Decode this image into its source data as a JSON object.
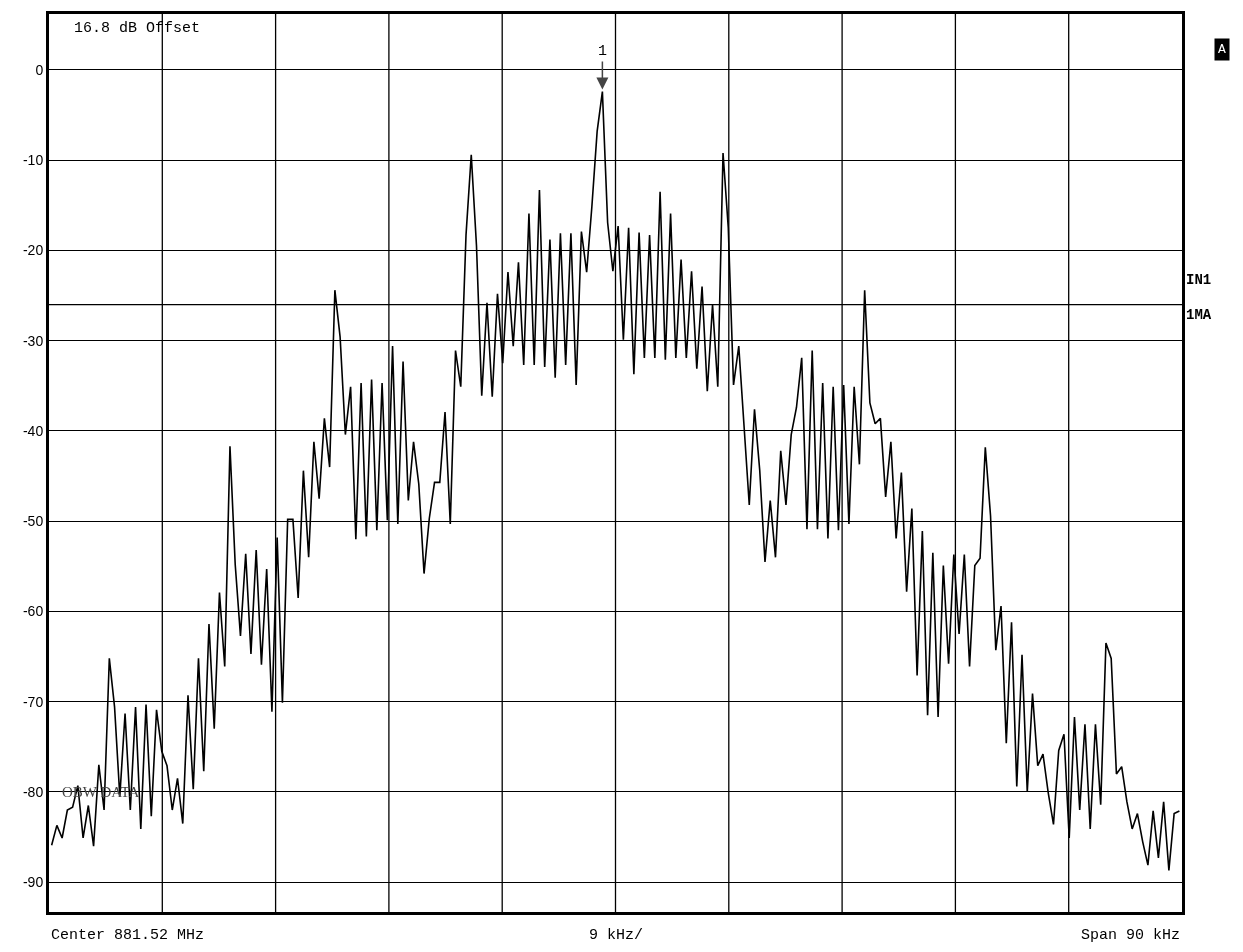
{
  "chart_data": {
    "type": "line",
    "categories": [
      null,
      null,
      null,
      null,
      null,
      null,
      null,
      null,
      null,
      null,
      null,
      null,
      null,
      null,
      null,
      null,
      null,
      null,
      null,
      null,
      null,
      null,
      null,
      null,
      null,
      null,
      null,
      null,
      null,
      null,
      null,
      null,
      null,
      null,
      null,
      null,
      null,
      null,
      null,
      null,
      null,
      null,
      null,
      null,
      null,
      null,
      null,
      null,
      null,
      null,
      null,
      null,
      null,
      null,
      null,
      null,
      null,
      null,
      null,
      null,
      null,
      null,
      null,
      null,
      null,
      null,
      null,
      null,
      null,
      null,
      null,
      null,
      null,
      null,
      null,
      null,
      null,
      null,
      null,
      null,
      null,
      null,
      null,
      null,
      null,
      null,
      null,
      null,
      null,
      null,
      null,
      null,
      null,
      null,
      null,
      null,
      null,
      null,
      null,
      null,
      null,
      null,
      null,
      null,
      null,
      null,
      null,
      null,
      null,
      null,
      null,
      null,
      null,
      null,
      null,
      null,
      null,
      null,
      null,
      null,
      null,
      null,
      null,
      null,
      null,
      null,
      null,
      null,
      null,
      null,
      null,
      null,
      null,
      null,
      null,
      null,
      null,
      null,
      null,
      null,
      null,
      null,
      null,
      null,
      null,
      null,
      null,
      null,
      null,
      null,
      null,
      null,
      null,
      null,
      null,
      null,
      null,
      null,
      null,
      null,
      null,
      null,
      null,
      null,
      null,
      null,
      null,
      null,
      null,
      null,
      null,
      null,
      null,
      null,
      null,
      null,
      null,
      null,
      null,
      null,
      null,
      null,
      null,
      null,
      null,
      null,
      null,
      null,
      null,
      null,
      null,
      null,
      null,
      null,
      null,
      null,
      null,
      null,
      null,
      null,
      null,
      null,
      null,
      null,
      null,
      null,
      null,
      null,
      null,
      null,
      null,
      null,
      null,
      null,
      null,
      null
    ],
    "series": [
      {
        "color": "#000000",
        "values": [
          -85.9,
          -83.7,
          -85.1,
          -82,
          -81.7,
          -79.3,
          -85.1,
          -81.5,
          -86,
          -77,
          -82,
          -65.2,
          -70.6,
          -80.5,
          -71.3,
          -82,
          -70.6,
          -84.1,
          -70.3,
          -82.7,
          -70.9,
          -75.5,
          -77.1,
          -82,
          -78.5,
          -83.5,
          -69.3,
          -79.7,
          -65.2,
          -77.7,
          -61.4,
          -73,
          -57.9,
          -66.1,
          -41.7,
          -54.8,
          -62.7,
          -53.6,
          -64.7,
          -53.2,
          -65.9,
          -55.3,
          -71.1,
          -51.8,
          -70.1,
          -49.8,
          -49.8,
          -58.5,
          -44.4,
          -54,
          -41.2,
          -47.5,
          -38.6,
          -44,
          -24.4,
          -29.6,
          -40.4,
          -35.1,
          -52,
          -34.7,
          -51.7,
          -34.3,
          -51,
          -34.7,
          -49.9,
          -30.6,
          -50.3,
          -32.3,
          -47.7,
          -41.2,
          -45.9,
          -55.8,
          -49.7,
          -45.7,
          -45.7,
          -37.9,
          -50.3,
          -31.1,
          -35.1,
          -18.3,
          -9.4,
          -19.5,
          -36.1,
          -25.8,
          -36.2,
          -24.8,
          -32.5,
          -22.4,
          -30.6,
          -21.3,
          -32.7,
          -15.9,
          -32.7,
          -13.3,
          -32.9,
          -18.8,
          -34.1,
          -18.1,
          -32.7,
          -18.1,
          -34.9,
          -17.9,
          -22.4,
          -15.1,
          -6.8,
          -2.4,
          -16.9,
          -22.3,
          -17.3,
          -29.9,
          -17.5,
          -33.7,
          -18,
          -31.9,
          -18.3,
          -31.9,
          -13.5,
          -32.1,
          -15.9,
          -31.9,
          -21,
          -31.9,
          -22.3,
          -33.1,
          -24,
          -35.6,
          -26,
          -35.1,
          -9.2,
          -17.5,
          -34.9,
          -30.6,
          -39.4,
          -48.2,
          -37.6,
          -44.4,
          -54.5,
          -47.7,
          -54,
          -42.2,
          -48.2,
          -40.4,
          -37.4,
          -31.9,
          -50.9,
          -31.1,
          -50.9,
          -34.7,
          -51.9,
          -35.1,
          -51,
          -34.9,
          -50.3,
          -35.1,
          -43.7,
          -24.4,
          -36.9,
          -39.2,
          -38.6,
          -47.3,
          -41.2,
          -51.9,
          -44.6,
          -57.8,
          -48.6,
          -67.1,
          -51.1,
          -71.5,
          -53.5,
          -71.7,
          -54.9,
          -65.8,
          -53.7,
          -62.5,
          -53.7,
          -66.1,
          -54.9,
          -54.1,
          -41.8,
          -49.4,
          -64.3,
          -59.4,
          -74.6,
          -61.2,
          -79.4,
          -64.8,
          -80,
          -69.1,
          -77.1,
          -75.8,
          -80.1,
          -83.6,
          -75.4,
          -73.6,
          -85.1,
          -71.7,
          -82,
          -72.5,
          -84.1,
          -72.5,
          -81.4,
          -63.5,
          -65.2,
          -78,
          -77.2,
          -81.1,
          -84.1,
          -82.4,
          -85.5,
          -88.1,
          -82.1,
          -87.3,
          -81.1,
          -88.7,
          -82.4,
          -82.1
        ]
      }
    ],
    "ylim": [
      -93.3,
      6.2
    ],
    "yticks": [
      0,
      -10,
      -20,
      -30,
      -40,
      -50,
      -60,
      -70,
      -80,
      -90
    ],
    "grid": true,
    "line_style": "solid",
    "ref_lines": [
      {
        "axis": "y",
        "value": -26,
        "color": "#000000"
      }
    ],
    "annotations": [
      "1",
      "16.8 dB Offset",
      "OBW DATA",
      "A",
      "IN1",
      "1MA",
      "Center 881.52 MHz",
      "9 kHz/",
      "Span 90 kHz"
    ]
  }
}
